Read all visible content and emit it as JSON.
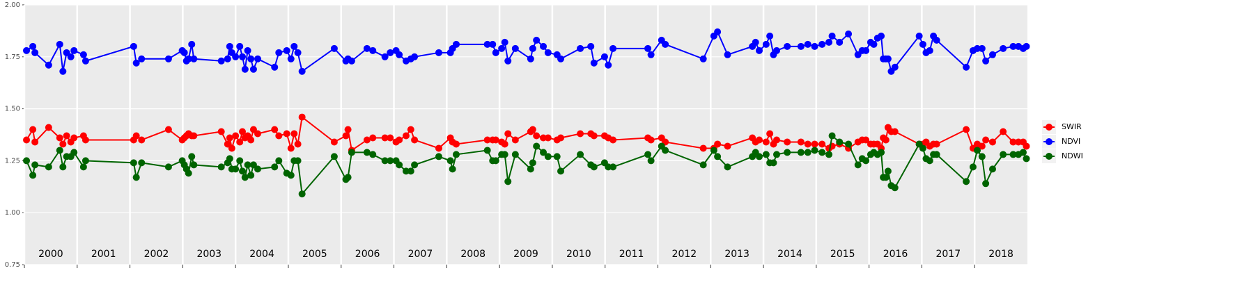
{
  "chart_data": {
    "type": "line",
    "x": [
      2000.04,
      2000.16,
      2000.2,
      2000.46,
      2000.67,
      2000.73,
      2000.8,
      2000.88,
      2000.94,
      2001.12,
      2001.16,
      2002.07,
      2002.12,
      2002.22,
      2002.73,
      2002.99,
      2003.03,
      2003.07,
      2003.11,
      2003.17,
      2003.21,
      2003.73,
      2003.85,
      2003.89,
      2003.93,
      2004.0,
      2004.08,
      2004.13,
      2004.18,
      2004.23,
      2004.29,
      2004.34,
      2004.42,
      2004.74,
      2004.82,
      2004.97,
      2005.05,
      2005.11,
      2005.18,
      2005.26,
      2005.87,
      2006.09,
      2006.13,
      2006.2,
      2006.49,
      2006.6,
      2006.83,
      2006.93,
      2007.04,
      2007.1,
      2007.23,
      2007.32,
      2007.39,
      2007.85,
      2008.07,
      2008.11,
      2008.18,
      2008.77,
      2008.87,
      2008.93,
      2009.04,
      2009.1,
      2009.16,
      2009.3,
      2009.59,
      2009.63,
      2009.7,
      2009.83,
      2009.92,
      2010.09,
      2010.16,
      2010.53,
      2010.73,
      2010.79,
      2010.99,
      2011.06,
      2011.15,
      2011.81,
      2011.87,
      2012.07,
      2012.14,
      2012.86,
      2013.06,
      2013.13,
      2013.32,
      2013.79,
      2013.85,
      2013.92,
      2014.05,
      2014.12,
      2014.19,
      2014.25,
      2014.45,
      2014.71,
      2014.84,
      2014.97,
      2015.11,
      2015.24,
      2015.3,
      2015.44,
      2015.61,
      2015.79,
      2015.87,
      2015.94,
      2016.03,
      2016.09,
      2016.16,
      2016.23,
      2016.27,
      2016.32,
      2016.36,
      2016.42,
      2016.49,
      2016.95,
      2017.02,
      2017.08,
      2017.15,
      2017.22,
      2017.28,
      2017.84,
      2017.97,
      2018.05,
      2018.14,
      2018.21,
      2018.34,
      2018.54,
      2018.73,
      2018.83,
      2018.92,
      2018.98
    ],
    "series": [
      {
        "name": "SWIR",
        "color": "#ff0000",
        "values": [
          1.35,
          1.4,
          1.34,
          1.41,
          1.36,
          1.33,
          1.37,
          1.34,
          1.36,
          1.37,
          1.35,
          1.35,
          1.37,
          1.35,
          1.4,
          1.35,
          1.36,
          1.37,
          1.38,
          1.37,
          1.37,
          1.39,
          1.33,
          1.36,
          1.31,
          1.37,
          1.34,
          1.39,
          1.36,
          1.37,
          1.35,
          1.4,
          1.38,
          1.4,
          1.37,
          1.38,
          1.31,
          1.38,
          1.33,
          1.46,
          1.34,
          1.37,
          1.4,
          1.3,
          1.35,
          1.36,
          1.36,
          1.36,
          1.34,
          1.35,
          1.37,
          1.4,
          1.35,
          1.31,
          1.36,
          1.34,
          1.33,
          1.35,
          1.35,
          1.35,
          1.34,
          1.33,
          1.38,
          1.35,
          1.39,
          1.4,
          1.37,
          1.36,
          1.36,
          1.35,
          1.36,
          1.38,
          1.38,
          1.37,
          1.37,
          1.36,
          1.35,
          1.36,
          1.35,
          1.36,
          1.34,
          1.31,
          1.31,
          1.33,
          1.32,
          1.36,
          1.34,
          1.35,
          1.34,
          1.38,
          1.33,
          1.35,
          1.34,
          1.34,
          1.33,
          1.33,
          1.33,
          1.31,
          1.32,
          1.33,
          1.31,
          1.34,
          1.35,
          1.35,
          1.33,
          1.33,
          1.33,
          1.31,
          1.36,
          1.35,
          1.41,
          1.39,
          1.39,
          1.33,
          1.33,
          1.34,
          1.32,
          1.33,
          1.33,
          1.4,
          1.31,
          1.33,
          1.32,
          1.35,
          1.34,
          1.39,
          1.34,
          1.34,
          1.34,
          1.32
        ]
      },
      {
        "name": "NDVI",
        "color": "#0000ff",
        "values": [
          1.78,
          1.8,
          1.77,
          1.71,
          1.81,
          1.68,
          1.77,
          1.75,
          1.78,
          1.76,
          1.73,
          1.8,
          1.72,
          1.74,
          1.74,
          1.78,
          1.77,
          1.73,
          1.74,
          1.81,
          1.74,
          1.73,
          1.74,
          1.8,
          1.77,
          1.75,
          1.8,
          1.75,
          1.69,
          1.78,
          1.74,
          1.69,
          1.74,
          1.7,
          1.77,
          1.78,
          1.74,
          1.8,
          1.77,
          1.68,
          1.79,
          1.73,
          1.74,
          1.73,
          1.79,
          1.78,
          1.75,
          1.77,
          1.78,
          1.76,
          1.73,
          1.74,
          1.75,
          1.77,
          1.77,
          1.79,
          1.81,
          1.81,
          1.81,
          1.77,
          1.79,
          1.82,
          1.73,
          1.79,
          1.74,
          1.79,
          1.83,
          1.8,
          1.77,
          1.76,
          1.74,
          1.79,
          1.8,
          1.72,
          1.75,
          1.71,
          1.79,
          1.79,
          1.76,
          1.83,
          1.81,
          1.74,
          1.85,
          1.87,
          1.76,
          1.8,
          1.82,
          1.78,
          1.81,
          1.85,
          1.76,
          1.78,
          1.8,
          1.8,
          1.81,
          1.8,
          1.81,
          1.82,
          1.85,
          1.82,
          1.86,
          1.76,
          1.78,
          1.78,
          1.82,
          1.81,
          1.84,
          1.85,
          1.74,
          1.74,
          1.74,
          1.68,
          1.7,
          1.85,
          1.81,
          1.77,
          1.78,
          1.85,
          1.83,
          1.7,
          1.78,
          1.79,
          1.79,
          1.73,
          1.76,
          1.79,
          1.8,
          1.8,
          1.79,
          1.8
        ]
      },
      {
        "name": "NDWI",
        "color": "#006400",
        "values": [
          1.25,
          1.18,
          1.23,
          1.22,
          1.3,
          1.22,
          1.27,
          1.27,
          1.29,
          1.22,
          1.25,
          1.24,
          1.17,
          1.24,
          1.22,
          1.25,
          1.23,
          1.21,
          1.19,
          1.27,
          1.23,
          1.22,
          1.24,
          1.26,
          1.21,
          1.21,
          1.25,
          1.2,
          1.17,
          1.23,
          1.18,
          1.23,
          1.21,
          1.22,
          1.25,
          1.19,
          1.18,
          1.25,
          1.25,
          1.09,
          1.27,
          1.16,
          1.17,
          1.29,
          1.29,
          1.28,
          1.25,
          1.25,
          1.25,
          1.23,
          1.2,
          1.2,
          1.23,
          1.27,
          1.25,
          1.21,
          1.28,
          1.3,
          1.25,
          1.25,
          1.28,
          1.28,
          1.15,
          1.28,
          1.21,
          1.24,
          1.32,
          1.29,
          1.27,
          1.27,
          1.2,
          1.28,
          1.23,
          1.22,
          1.24,
          1.22,
          1.22,
          1.28,
          1.25,
          1.32,
          1.3,
          1.23,
          1.3,
          1.27,
          1.22,
          1.27,
          1.29,
          1.27,
          1.28,
          1.24,
          1.24,
          1.28,
          1.29,
          1.29,
          1.29,
          1.3,
          1.29,
          1.28,
          1.37,
          1.34,
          1.33,
          1.23,
          1.26,
          1.25,
          1.28,
          1.29,
          1.28,
          1.29,
          1.17,
          1.17,
          1.2,
          1.13,
          1.12,
          1.33,
          1.31,
          1.26,
          1.25,
          1.28,
          1.28,
          1.15,
          1.22,
          1.3,
          1.27,
          1.14,
          1.21,
          1.28,
          1.28,
          1.28,
          1.29,
          1.26
        ]
      }
    ],
    "xlim": [
      2000,
      2019
    ],
    "xticks": [
      2000,
      2001,
      2002,
      2003,
      2004,
      2005,
      2006,
      2007,
      2008,
      2009,
      2010,
      2011,
      2012,
      2013,
      2014,
      2015,
      2016,
      2017,
      2018
    ],
    "ylim": [
      0.75,
      2.0
    ],
    "yticks": [
      0.75,
      {
        "value": 1.0,
        "label": "1.00"
      },
      1.25,
      {
        "value": 1.5,
        "label": "1.50"
      },
      1.75,
      {
        "value": 2.0,
        "label": "2.00"
      }
    ],
    "grid": true,
    "legend": "right"
  }
}
